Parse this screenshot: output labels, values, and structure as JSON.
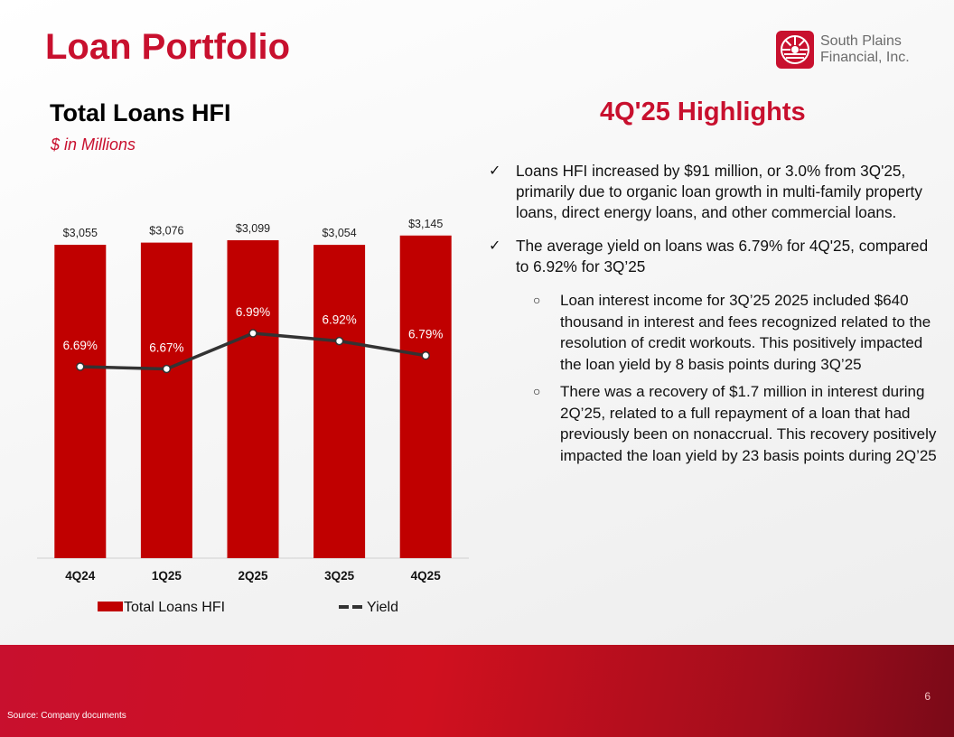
{
  "page": {
    "title": "Loan Portfolio",
    "page_number": "6",
    "source": "Source: Company documents"
  },
  "logo": {
    "line1": "South Plains",
    "line2": "Financial, Inc.",
    "icon": "sun-rays-logo-icon"
  },
  "colors": {
    "brand_red": "#c8102e",
    "bar": "#c00000",
    "line": "#333333",
    "text": "#111111"
  },
  "highlights": {
    "title": "4Q'25 Highlights",
    "bullets": [
      {
        "text": "Loans HFI increased by $91 million, or 3.0% from 3Q'25, primarily due to organic loan growth in multi-family property loans, direct energy loans, and other commercial loans.",
        "sub": []
      },
      {
        "text": "The average yield on loans was 6.79% for 4Q'25, compared to 6.92% for 3Q’25",
        "sub": [
          "Loan interest income for 3Q’25 2025 included $640 thousand in interest and fees recognized related to the resolution of credit workouts. This positively impacted the loan yield by 8 basis points during 3Q’25",
          "There was a recovery of $1.7 million in interest during 2Q’25, related to a full repayment of a loan that had previously been on nonaccrual. This recovery positively impacted the loan yield by 23 basis points during 2Q’25"
        ]
      }
    ]
  },
  "chart_data": {
    "type": "bar",
    "title": "Total Loans HFI",
    "subtitle": "$ in Millions",
    "categories": [
      "4Q24",
      "1Q25",
      "2Q25",
      "3Q25",
      "4Q25"
    ],
    "series": [
      {
        "name": "Total Loans HFI",
        "type": "bar",
        "values": [
          3055,
          3076,
          3099,
          3054,
          3145
        ],
        "labels": [
          "$3,055",
          "$3,076",
          "$3,099",
          "$3,054",
          "$3,145"
        ]
      },
      {
        "name": "Yield",
        "type": "line",
        "values": [
          6.69,
          6.67,
          6.99,
          6.92,
          6.79
        ],
        "labels": [
          "6.69%",
          "6.67%",
          "6.99%",
          "6.92%",
          "6.79%"
        ]
      }
    ],
    "legend": "bottom",
    "grid": false
  }
}
